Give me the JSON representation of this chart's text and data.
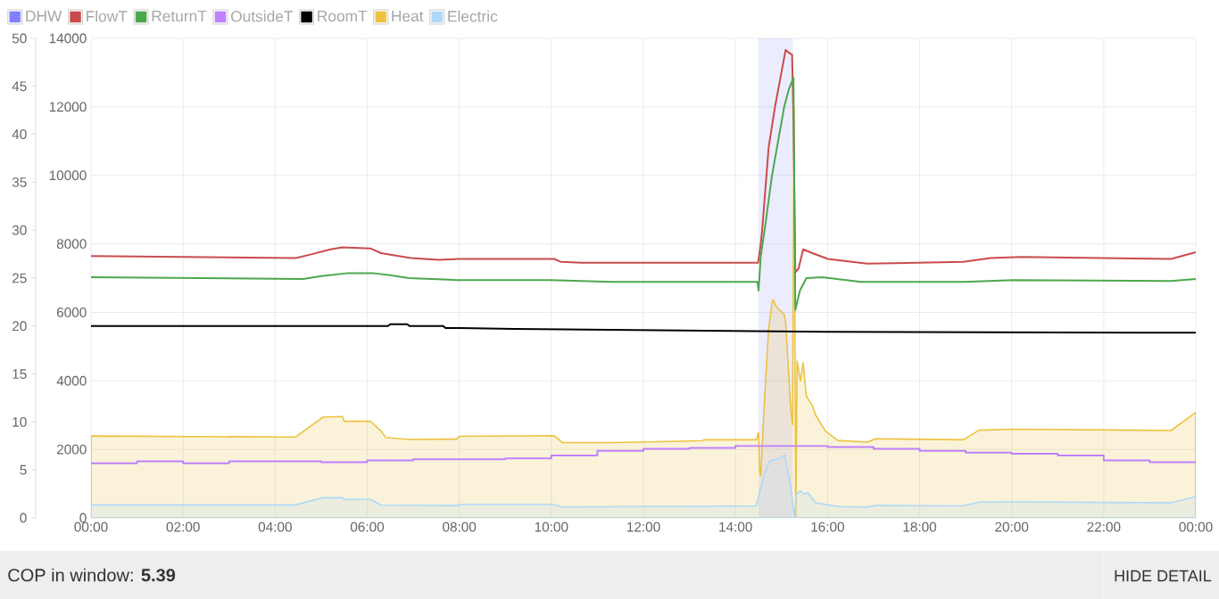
{
  "chart_data": {
    "type": "line",
    "xlim": [
      0,
      24
    ],
    "xticks": [
      {
        "value": 0,
        "label": "00:00"
      },
      {
        "value": 2,
        "label": "02:00"
      },
      {
        "value": 4,
        "label": "04:00"
      },
      {
        "value": 6,
        "label": "06:00"
      },
      {
        "value": 8,
        "label": "08:00"
      },
      {
        "value": 10,
        "label": "10:00"
      },
      {
        "value": 12,
        "label": "12:00"
      },
      {
        "value": 14,
        "label": "14:00"
      },
      {
        "value": 16,
        "label": "16:00"
      },
      {
        "value": 18,
        "label": "18:00"
      },
      {
        "value": 20,
        "label": "20:00"
      },
      {
        "value": 22,
        "label": "22:00"
      },
      {
        "value": 24,
        "label": "00:00"
      }
    ],
    "ylim": [
      0,
      14000
    ],
    "yticks": [
      0,
      2000,
      4000,
      6000,
      8000,
      10000,
      12000,
      14000
    ],
    "y2lim": [
      0,
      50
    ],
    "y2ticks": [
      0,
      5,
      10,
      15,
      20,
      25,
      30,
      35,
      40,
      45,
      50
    ],
    "grid": true,
    "legend": "top left",
    "bands": [
      {
        "axis": "x",
        "from": 14.5,
        "to": 15.25,
        "label": "DHW",
        "color": "#8080ff"
      }
    ],
    "series": [
      {
        "name": "FlowT",
        "color": "#cb4b4b",
        "axis": "y2",
        "x": [
          0,
          4.45,
          4.8,
          5.2,
          5.46,
          6.07,
          6.3,
          6.95,
          7.55,
          8.0,
          10.06,
          10.2,
          10.66,
          12.0,
          14.49,
          14.55,
          14.58,
          14.72,
          14.86,
          15.09,
          15.16,
          15.23,
          15.26,
          15.3,
          15.37,
          15.47,
          15.67,
          16.01,
          16.37,
          16.86,
          18.95,
          19.54,
          20.2,
          23.46,
          24
        ],
        "values": [
          27.3,
          27.1,
          27.5,
          28.0,
          28.2,
          28.1,
          27.6,
          27.1,
          26.9,
          27.0,
          27.0,
          26.7,
          26.6,
          26.6,
          26.6,
          28.6,
          30.0,
          38.6,
          42.9,
          48.8,
          48.5,
          48.3,
          41.3,
          25.6,
          26.0,
          28.0,
          27.6,
          27.0,
          26.8,
          26.5,
          26.7,
          27.1,
          27.2,
          27.0,
          27.7
        ]
      },
      {
        "name": "ReturnT",
        "color": "#4da74d",
        "axis": "y2",
        "x": [
          0,
          4.61,
          5.0,
          5.55,
          6.15,
          6.5,
          6.9,
          7.93,
          9.98,
          11.33,
          14.48,
          14.5,
          14.55,
          14.65,
          14.79,
          15.06,
          15.16,
          15.26,
          15.3,
          15.4,
          15.54,
          15.88,
          16.73,
          18.95,
          20.04,
          23.46,
          24
        ],
        "values": [
          25.1,
          24.9,
          25.2,
          25.5,
          25.5,
          25.3,
          25.0,
          24.8,
          24.8,
          24.6,
          24.6,
          23.7,
          27.3,
          30.6,
          35.6,
          42.9,
          44.7,
          45.9,
          21.7,
          23.7,
          25.0,
          25.1,
          24.6,
          24.6,
          24.8,
          24.7,
          24.9
        ]
      },
      {
        "name": "OutsideT",
        "color": "#c080ff",
        "type": "step",
        "axis": "y2",
        "x": [
          0,
          1,
          2,
          3,
          4,
          5,
          6,
          7,
          8,
          9,
          10,
          11,
          12,
          13,
          14,
          15,
          16,
          17,
          18,
          19,
          20,
          21,
          22,
          23,
          24
        ],
        "values": [
          5.7,
          5.9,
          5.7,
          5.9,
          5.9,
          5.8,
          6.0,
          6.1,
          6.1,
          6.2,
          6.5,
          7.0,
          7.2,
          7.3,
          7.5,
          7.5,
          7.4,
          7.2,
          7.0,
          6.8,
          6.7,
          6.5,
          6.0,
          5.8,
          5.8
        ]
      },
      {
        "name": "RoomT",
        "color": "#000000",
        "axis": "y2",
        "x": [
          0,
          6.45,
          6.5,
          6.87,
          6.92,
          7.65,
          7.7,
          8.0,
          9.2,
          11.3,
          16.0,
          24
        ],
        "values": [
          20.0,
          20.0,
          20.2,
          20.2,
          20.0,
          20.0,
          19.8,
          19.8,
          19.7,
          19.6,
          19.4,
          19.3
        ]
      },
      {
        "name": "Heat",
        "color": "#edc240",
        "type": "area",
        "x": [
          0,
          4.44,
          5.04,
          5.46,
          5.5,
          6.07,
          6.31,
          6.4,
          6.9,
          7.95,
          7.99,
          10.06,
          10.24,
          11.33,
          13.28,
          13.32,
          14.45,
          14.5,
          14.53,
          14.55,
          14.62,
          14.72,
          14.79,
          14.82,
          14.89,
          15.06,
          15.09,
          15.14,
          15.2,
          15.24,
          15.27,
          15.31,
          15.34,
          15.41,
          15.47,
          15.54,
          15.6,
          15.67,
          15.74,
          15.95,
          16.22,
          16.87,
          17.04,
          18.95,
          19.29,
          20.04,
          23.46,
          24
        ],
        "values": [
          2390,
          2360,
          2940,
          2960,
          2820,
          2820,
          2520,
          2350,
          2290,
          2300,
          2380,
          2400,
          2200,
          2200,
          2250,
          2280,
          2280,
          2490,
          1330,
          1230,
          3190,
          5510,
          6250,
          6370,
          6160,
          5930,
          5700,
          4580,
          3190,
          2720,
          12000,
          0,
          4580,
          4000,
          4530,
          3560,
          3420,
          3280,
          3000,
          2540,
          2260,
          2210,
          2310,
          2280,
          2560,
          2590,
          2550,
          3080
        ]
      },
      {
        "name": "Electric",
        "color": "#afd8f8",
        "type": "area",
        "x": [
          0,
          4.44,
          5.04,
          5.46,
          5.5,
          6.07,
          6.31,
          7.95,
          7.99,
          10.06,
          10.24,
          13.28,
          14.45,
          14.62,
          14.74,
          14.91,
          15.07,
          15.2,
          15.28,
          15.32,
          15.41,
          15.49,
          15.57,
          15.74,
          16.24,
          16.87,
          17.04,
          18.95,
          19.29,
          20.04,
          23.46,
          24
        ],
        "values": [
          380,
          380,
          590,
          590,
          540,
          540,
          370,
          360,
          390,
          390,
          320,
          340,
          350,
          1260,
          1660,
          1720,
          1830,
          920,
          0,
          690,
          790,
          690,
          740,
          440,
          330,
          320,
          360,
          350,
          460,
          470,
          440,
          620
        ]
      }
    ],
    "annotations": [
      "COP in window: **5.39**",
      "HIDE DETAIL"
    ]
  }
}
